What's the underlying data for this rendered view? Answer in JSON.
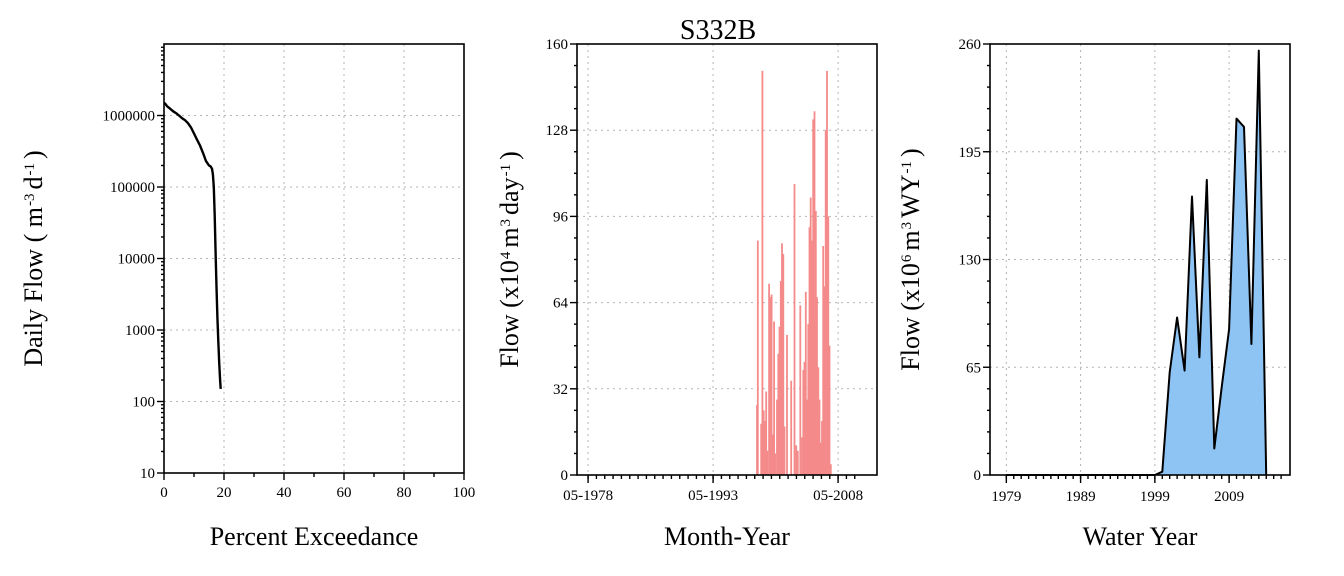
{
  "figure_title": "S332B",
  "chart_data": [
    {
      "type": "line",
      "id": "fdc",
      "xlabel": "Percent Exceedance",
      "ylabel_parts": [
        "Daily Flow ( m",
        "-3",
        "d",
        "-1",
        ")"
      ],
      "xlim": [
        0,
        100
      ],
      "ylim": [
        10,
        10000000
      ],
      "yscale": "log",
      "x_ticks": [
        0,
        20,
        40,
        60,
        80,
        100
      ],
      "y_ticks": [
        10,
        100,
        1000,
        10000,
        100000,
        1000000
      ],
      "y_tick_labels": [
        "10",
        "100",
        "1000",
        "10000",
        "100000",
        "1000000"
      ],
      "grid": true,
      "line_color": "#000000",
      "x": [
        0,
        0.5,
        1,
        2,
        3,
        4,
        5,
        6,
        7,
        8,
        9,
        10,
        11,
        12,
        13,
        14,
        15,
        15.5,
        16,
        16.3,
        16.6,
        16.9,
        17.2,
        17.5,
        17.8,
        18.1,
        18.4,
        18.7,
        18.9
      ],
      "y": [
        1500000,
        1450000,
        1350000,
        1250000,
        1150000,
        1080000,
        1000000,
        920000,
        860000,
        780000,
        680000,
        560000,
        460000,
        380000,
        300000,
        230000,
        200000,
        195000,
        180000,
        150000,
        100000,
        40000,
        12000,
        4000,
        1500,
        700,
        350,
        200,
        150
      ]
    },
    {
      "type": "bar",
      "id": "monthly",
      "xlabel": "Month-Year",
      "ylabel_parts": [
        "Flow (x10",
        "4",
        "m",
        "3",
        "day",
        "-1",
        ")"
      ],
      "ylim": [
        0,
        160
      ],
      "y_ticks": [
        0,
        32,
        64,
        96,
        128,
        160
      ],
      "x_tick_labels": [
        {
          "label": "05-1978",
          "year": 1978.33
        },
        {
          "label": "05-1993",
          "year": 1993.33
        },
        {
          "label": "05-2008",
          "year": 2008.33
        }
      ],
      "xlim_year": [
        1977,
        2013
      ],
      "grid": true,
      "bar_color": "#f48a8a",
      "bars": [
        {
          "year": 1998.6,
          "value": 26
        },
        {
          "year": 1998.7,
          "value": 87
        },
        {
          "year": 1999.1,
          "value": 19
        },
        {
          "year": 1999.25,
          "value": 150
        },
        {
          "year": 1999.4,
          "value": 24
        },
        {
          "year": 1999.55,
          "value": 20
        },
        {
          "year": 1999.7,
          "value": 31
        },
        {
          "year": 1999.85,
          "value": 9
        },
        {
          "year": 2000.05,
          "value": 71
        },
        {
          "year": 2000.2,
          "value": 66
        },
        {
          "year": 2000.35,
          "value": 67
        },
        {
          "year": 2000.5,
          "value": 15
        },
        {
          "year": 2000.65,
          "value": 57
        },
        {
          "year": 2000.8,
          "value": 8
        },
        {
          "year": 2001.0,
          "value": 28
        },
        {
          "year": 2001.15,
          "value": 45
        },
        {
          "year": 2001.3,
          "value": 55
        },
        {
          "year": 2001.45,
          "value": 72
        },
        {
          "year": 2001.6,
          "value": 86
        },
        {
          "year": 2001.75,
          "value": 82
        },
        {
          "year": 2001.9,
          "value": 18
        },
        {
          "year": 2002.2,
          "value": 52
        },
        {
          "year": 2002.7,
          "value": 35
        },
        {
          "year": 2003.1,
          "value": 108
        },
        {
          "year": 2003.3,
          "value": 11
        },
        {
          "year": 2003.5,
          "value": 9
        },
        {
          "year": 2003.8,
          "value": 63
        },
        {
          "year": 2004.0,
          "value": 14
        },
        {
          "year": 2004.15,
          "value": 39
        },
        {
          "year": 2004.3,
          "value": 42
        },
        {
          "year": 2004.45,
          "value": 68
        },
        {
          "year": 2004.6,
          "value": 28
        },
        {
          "year": 2004.75,
          "value": 56
        },
        {
          "year": 2004.9,
          "value": 92
        },
        {
          "year": 2005.05,
          "value": 103
        },
        {
          "year": 2005.2,
          "value": 87
        },
        {
          "year": 2005.35,
          "value": 132
        },
        {
          "year": 2005.5,
          "value": 135
        },
        {
          "year": 2005.65,
          "value": 98
        },
        {
          "year": 2005.8,
          "value": 66
        },
        {
          "year": 2005.95,
          "value": 40
        },
        {
          "year": 2006.1,
          "value": 28
        },
        {
          "year": 2006.25,
          "value": 12
        },
        {
          "year": 2006.4,
          "value": 20
        },
        {
          "year": 2006.55,
          "value": 85
        },
        {
          "year": 2006.7,
          "value": 70
        },
        {
          "year": 2006.85,
          "value": 128
        },
        {
          "year": 2007.0,
          "value": 150
        },
        {
          "year": 2007.15,
          "value": 96
        },
        {
          "year": 2007.3,
          "value": 48
        },
        {
          "year": 2007.45,
          "value": 4
        }
      ]
    },
    {
      "type": "area",
      "id": "annual",
      "xlabel": "Water Year",
      "ylabel_parts": [
        "Flow (x10",
        "6",
        "m",
        "3",
        "WY",
        "-1",
        ")"
      ],
      "ylim": [
        0,
        260
      ],
      "y_ticks": [
        0,
        65,
        130,
        195,
        260
      ],
      "x_ticks": [
        1979,
        1989,
        1999,
        2009
      ],
      "xlim": [
        1976.8,
        2017.2
      ],
      "grid": true,
      "fill_color": "#8ec4f4",
      "line_color": "#000000",
      "x": [
        1979,
        1999,
        2000,
        2001,
        2002,
        2003,
        2004,
        2005,
        2006,
        2007,
        2008,
        2009,
        2010,
        2011,
        2012,
        2013,
        2014
      ],
      "y": [
        0,
        0,
        2,
        62,
        95,
        63,
        168,
        71,
        178,
        16,
        53,
        88,
        215,
        210,
        79,
        256,
        0
      ]
    }
  ]
}
